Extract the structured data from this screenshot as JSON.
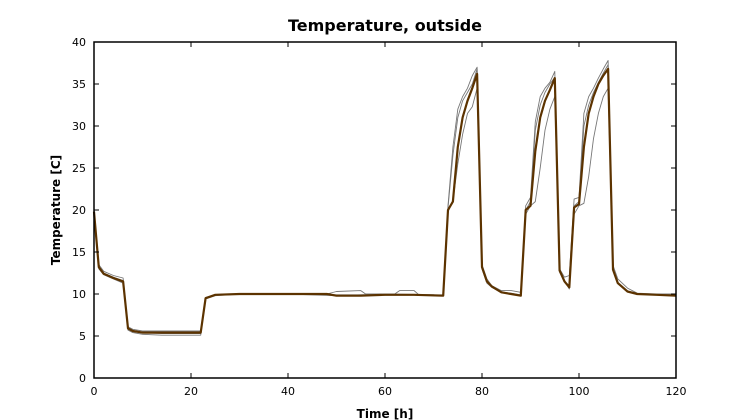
{
  "chart_data": {
    "type": "line",
    "title": "Temperature, outside",
    "xlabel": "Time [h]",
    "ylabel": "Temperature [C]",
    "xlim": [
      0,
      120
    ],
    "ylim": [
      0,
      40
    ],
    "xticks": [
      0,
      20,
      40,
      60,
      80,
      100,
      120
    ],
    "yticks": [
      0,
      5,
      10,
      15,
      20,
      25,
      30,
      35,
      40
    ],
    "grid": false,
    "legend": "none",
    "colors": {
      "ensemble": "#777777",
      "mean": "#5c3300",
      "frame": "#000000"
    },
    "series": [
      {
        "role": "ensemble",
        "x": [
          0,
          1,
          2,
          4,
          6,
          7,
          8,
          10,
          14,
          18,
          21,
          22,
          23,
          25,
          30,
          40,
          48,
          50,
          55,
          56,
          62,
          63,
          66,
          67,
          72,
          73,
          74,
          75,
          76,
          77,
          78,
          79,
          80,
          81,
          82,
          84,
          86,
          88,
          89,
          90,
          91,
          92,
          93,
          94,
          95,
          96,
          97,
          98,
          99,
          100,
          101,
          102,
          103,
          104,
          105,
          106,
          107,
          108,
          110,
          112,
          116,
          120
        ],
        "y": [
          20,
          13.5,
          12.7,
          12.2,
          11.9,
          6.1,
          5.8,
          5.6,
          5.6,
          5.6,
          5.6,
          5.6,
          9.6,
          9.9,
          10,
          10,
          10,
          10.3,
          10.4,
          10,
          10,
          10.4,
          10.4,
          9.9,
          9.9,
          20.5,
          27.5,
          32,
          33.5,
          34.5,
          36,
          37,
          13.5,
          11.8,
          11,
          10.4,
          10.4,
          10.2,
          20.5,
          21.5,
          30.5,
          33.5,
          34.5,
          35.2,
          36.5,
          13,
          12,
          12.2,
          21.3,
          21.5,
          31.5,
          33.5,
          34.5,
          35.7,
          36.8,
          37.8,
          13.4,
          11.8,
          10.7,
          10.1,
          10,
          10
        ]
      },
      {
        "role": "ensemble",
        "x": [
          0,
          1,
          2,
          4,
          6,
          7,
          8,
          10,
          14,
          18,
          21,
          22,
          23,
          25,
          30,
          40,
          50,
          60,
          70,
          72,
          73,
          74,
          75,
          76,
          77,
          78,
          79,
          80,
          81,
          82,
          84,
          86,
          88,
          89,
          90,
          91,
          92,
          93,
          94,
          95,
          96,
          97,
          98,
          99,
          100,
          101,
          102,
          103,
          104,
          105,
          106,
          107,
          108,
          110,
          112,
          116,
          120
        ],
        "y": [
          19.5,
          13,
          12.3,
          11.8,
          11.3,
          5.7,
          5.4,
          5.2,
          5.1,
          5.1,
          5.1,
          5.1,
          9.4,
          9.8,
          10,
          10,
          9.9,
          9.9,
          9.9,
          9.8,
          19.8,
          21,
          25.5,
          29,
          31.5,
          32.3,
          34.5,
          13,
          11.3,
          10.8,
          10.2,
          10.1,
          9.9,
          19.5,
          20.5,
          21,
          25,
          29.5,
          32,
          33.5,
          12.8,
          11.5,
          11,
          19.5,
          20.5,
          20.8,
          24,
          28.5,
          31.5,
          33.5,
          34.5,
          12.8,
          11.2,
          10.3,
          10,
          10,
          9.9
        ]
      },
      {
        "role": "ensemble",
        "x": [
          0,
          1,
          2,
          4,
          6,
          7,
          8,
          10,
          14,
          18,
          21,
          22,
          23,
          25,
          30,
          40,
          50,
          60,
          70,
          72,
          73,
          74,
          75,
          76,
          77,
          78,
          79,
          80,
          81,
          82,
          84,
          86,
          88,
          89,
          90,
          91,
          92,
          93,
          94,
          95,
          96,
          97,
          98,
          99,
          100,
          101,
          102,
          103,
          104,
          105,
          106,
          107,
          108,
          110,
          112,
          116,
          120
        ],
        "y": [
          20.2,
          13.3,
          12.5,
          12,
          11.6,
          5.9,
          5.6,
          5.4,
          5.3,
          5.3,
          5.3,
          5.3,
          9.5,
          9.9,
          10,
          10,
          9.8,
          10,
          9.9,
          9.8,
          20.3,
          26.5,
          31,
          33,
          34,
          35,
          36.8,
          13.3,
          11.6,
          11,
          10.3,
          10,
          9.8,
          20,
          21,
          29.5,
          32.5,
          34,
          35,
          35.8,
          12.6,
          11.6,
          10.6,
          20.5,
          21,
          30,
          32.5,
          34,
          35.2,
          36.3,
          37.3,
          13,
          11.3,
          10.3,
          10,
          9.9,
          9.9
        ]
      },
      {
        "role": "mean",
        "x": [
          0,
          1,
          2,
          4,
          6,
          7,
          8,
          10,
          14,
          18,
          21,
          22,
          23,
          25,
          30,
          40,
          48,
          50,
          55,
          60,
          66,
          72,
          73,
          74,
          75,
          76,
          77,
          78,
          79,
          80,
          81,
          82,
          84,
          86,
          88,
          89,
          90,
          91,
          92,
          93,
          94,
          95,
          96,
          97,
          98,
          99,
          100,
          101,
          102,
          103,
          104,
          105,
          106,
          107,
          108,
          110,
          112,
          116,
          120
        ],
        "y": [
          19.8,
          13.2,
          12.4,
          11.9,
          11.5,
          5.9,
          5.6,
          5.4,
          5.4,
          5.4,
          5.4,
          5.4,
          9.5,
          9.9,
          10,
          10,
          10,
          9.8,
          9.8,
          9.9,
          9.9,
          9.8,
          20,
          21,
          27.5,
          31,
          33,
          34.5,
          36.2,
          13.2,
          11.5,
          10.9,
          10.2,
          10,
          9.8,
          20,
          20.5,
          27,
          31,
          33,
          34.3,
          35.7,
          12.8,
          11.5,
          10.8,
          20.3,
          20.7,
          27.5,
          31.5,
          33.5,
          35,
          36,
          36.8,
          12.9,
          11.3,
          10.3,
          10,
          9.9,
          9.8
        ]
      }
    ]
  }
}
